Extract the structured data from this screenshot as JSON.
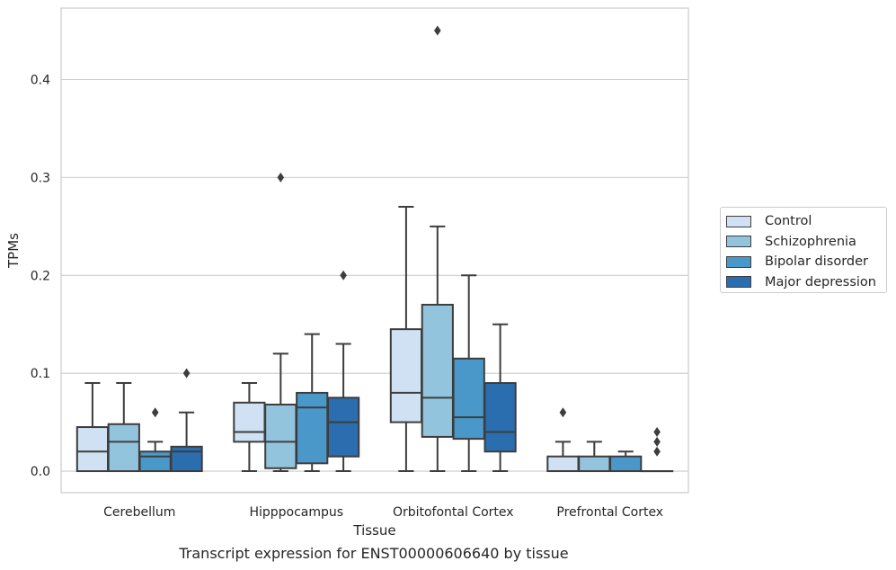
{
  "chart_data": {
    "type": "box",
    "title": "",
    "xlabel": "Tissue",
    "ylabel": "TPMs",
    "caption": "Transcript expression for ENST00000606640 by tissue",
    "categories": [
      "Cerebellum",
      "Hipppocampus",
      "Orbitofontal Cortex",
      "Prefrontal Cortex"
    ],
    "ylim": [
      -0.022,
      0.473
    ],
    "yticks": [
      0.0,
      0.1,
      0.2,
      0.3,
      0.4
    ],
    "ytick_labels": [
      "0.0",
      "0.1",
      "0.2",
      "0.3",
      "0.4"
    ],
    "grid": "horizontal",
    "legend_position": "right",
    "series": [
      {
        "name": "Control",
        "color": "#cfe1f2",
        "boxes": [
          {
            "whislo": 0.0,
            "q1": 0.0,
            "med": 0.02,
            "q3": 0.045,
            "whishi": 0.09,
            "fliers": []
          },
          {
            "whislo": 0.0,
            "q1": 0.03,
            "med": 0.04,
            "q3": 0.07,
            "whishi": 0.09,
            "fliers": []
          },
          {
            "whislo": 0.0,
            "q1": 0.05,
            "med": 0.08,
            "q3": 0.145,
            "whishi": 0.27,
            "fliers": []
          },
          {
            "whislo": 0.0,
            "q1": 0.0,
            "med": 0.0,
            "q3": 0.015,
            "whishi": 0.03,
            "fliers": [
              0.06
            ]
          }
        ]
      },
      {
        "name": "Schizophrenia",
        "color": "#93c4de",
        "boxes": [
          {
            "whislo": 0.0,
            "q1": 0.0,
            "med": 0.03,
            "q3": 0.048,
            "whishi": 0.09,
            "fliers": []
          },
          {
            "whislo": 0.0,
            "q1": 0.003,
            "med": 0.03,
            "q3": 0.068,
            "whishi": 0.12,
            "fliers": [
              0.3
            ]
          },
          {
            "whislo": 0.0,
            "q1": 0.035,
            "med": 0.075,
            "q3": 0.17,
            "whishi": 0.25,
            "fliers": [
              0.45
            ]
          },
          {
            "whislo": 0.0,
            "q1": 0.0,
            "med": 0.0,
            "q3": 0.015,
            "whishi": 0.03,
            "fliers": []
          }
        ]
      },
      {
        "name": "Bipolar disorder",
        "color": "#4a98c9",
        "boxes": [
          {
            "whislo": 0.0,
            "q1": 0.0,
            "med": 0.015,
            "q3": 0.02,
            "whishi": 0.03,
            "fliers": [
              0.06
            ]
          },
          {
            "whislo": 0.0,
            "q1": 0.008,
            "med": 0.065,
            "q3": 0.08,
            "whishi": 0.14,
            "fliers": []
          },
          {
            "whislo": 0.0,
            "q1": 0.033,
            "med": 0.055,
            "q3": 0.115,
            "whishi": 0.2,
            "fliers": []
          },
          {
            "whislo": 0.0,
            "q1": 0.0,
            "med": 0.0,
            "q3": 0.015,
            "whishi": 0.02,
            "fliers": []
          }
        ]
      },
      {
        "name": "Major depression",
        "color": "#2b6eb0",
        "boxes": [
          {
            "whislo": 0.0,
            "q1": 0.0,
            "med": 0.02,
            "q3": 0.025,
            "whishi": 0.06,
            "fliers": [
              0.1
            ]
          },
          {
            "whislo": 0.0,
            "q1": 0.015,
            "med": 0.05,
            "q3": 0.075,
            "whishi": 0.13,
            "fliers": [
              0.2
            ]
          },
          {
            "whislo": 0.0,
            "q1": 0.02,
            "med": 0.04,
            "q3": 0.09,
            "whishi": 0.15,
            "fliers": []
          },
          {
            "whislo": 0.0,
            "q1": 0.0,
            "med": 0.0,
            "q3": 0.0,
            "whishi": 0.0,
            "fliers": [
              0.02,
              0.03,
              0.04
            ]
          }
        ]
      }
    ]
  }
}
